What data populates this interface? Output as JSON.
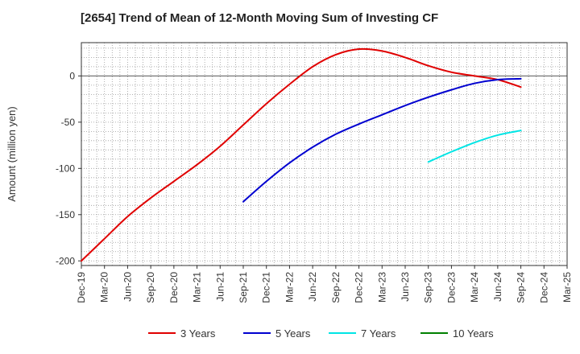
{
  "chart_data": {
    "type": "line",
    "title": "[2654]  Trend of Mean of 12-Month Moving Sum of Investing CF",
    "xlabel": "",
    "ylabel": "Amount (million yen)",
    "ylim": [
      -205,
      36
    ],
    "y_ticks": [
      0,
      -50,
      -100,
      -150,
      -200
    ],
    "x_tick_labels": [
      "Dec-19",
      "Mar-20",
      "Jun-20",
      "Sep-20",
      "Dec-20",
      "Mar-21",
      "Jun-21",
      "Sep-21",
      "Dec-21",
      "Mar-22",
      "Jun-22",
      "Sep-22",
      "Dec-22",
      "Mar-23",
      "Jun-23",
      "Sep-23",
      "Dec-23",
      "Mar-24",
      "Jun-24",
      "Sep-24",
      "Dec-24",
      "Mar-25"
    ],
    "grid": true,
    "legend_position": "bottom",
    "series": [
      {
        "name": "3 Years",
        "color": "#e00000",
        "points": [
          [
            "Dec-19",
            -200
          ],
          [
            "Mar-20",
            -176
          ],
          [
            "Jun-20",
            -152
          ],
          [
            "Sep-20",
            -132
          ],
          [
            "Dec-20",
            -114
          ],
          [
            "Mar-21",
            -96
          ],
          [
            "Jun-21",
            -76
          ],
          [
            "Sep-21",
            -53
          ],
          [
            "Dec-21",
            -30
          ],
          [
            "Mar-22",
            -9
          ],
          [
            "Jun-22",
            10
          ],
          [
            "Sep-22",
            23
          ],
          [
            "Dec-22",
            29
          ],
          [
            "Mar-23",
            27
          ],
          [
            "Jun-23",
            20
          ],
          [
            "Sep-23",
            11
          ],
          [
            "Dec-23",
            4
          ],
          [
            "Mar-24",
            0
          ],
          [
            "Jun-24",
            -4
          ],
          [
            "Sep-24",
            -12
          ]
        ]
      },
      {
        "name": "5 Years",
        "color": "#0000d0",
        "points": [
          [
            "Sep-21",
            -136
          ],
          [
            "Dec-21",
            -114
          ],
          [
            "Mar-22",
            -94
          ],
          [
            "Jun-22",
            -77
          ],
          [
            "Sep-22",
            -63
          ],
          [
            "Dec-22",
            -52
          ],
          [
            "Mar-23",
            -42
          ],
          [
            "Jun-23",
            -32
          ],
          [
            "Sep-23",
            -23
          ],
          [
            "Dec-23",
            -15
          ],
          [
            "Mar-24",
            -8
          ],
          [
            "Jun-24",
            -4
          ],
          [
            "Sep-24",
            -3
          ]
        ]
      },
      {
        "name": "7 Years",
        "color": "#00e5e5",
        "points": [
          [
            "Sep-23",
            -93
          ],
          [
            "Dec-23",
            -82
          ],
          [
            "Mar-24",
            -72
          ],
          [
            "Jun-24",
            -64
          ],
          [
            "Sep-24",
            -59
          ]
        ]
      },
      {
        "name": "10 Years",
        "color": "#008000",
        "points": []
      }
    ]
  }
}
